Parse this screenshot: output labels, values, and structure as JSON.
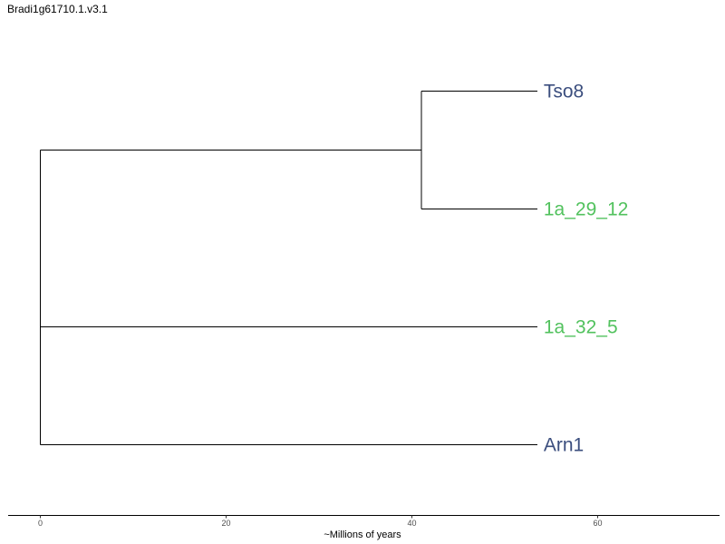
{
  "title": "Bradi1g61710.1.v3.1",
  "axis": {
    "label": "~Millions of years",
    "ticks": [
      0,
      20,
      40,
      60
    ],
    "range": [
      -3.5,
      73
    ]
  },
  "colors": {
    "group_a": "#3b4e7e",
    "group_b": "#52c25e",
    "branch": "#000000"
  },
  "tree": {
    "leaves": [
      {
        "name": "Tso8",
        "x": 53.5,
        "color": "#3b4e7e"
      },
      {
        "name": "1a_29_12",
        "x": 53.5,
        "color": "#52c25e"
      },
      {
        "name": "1a_32_5",
        "x": 53.5,
        "color": "#52c25e"
      },
      {
        "name": "Arn1",
        "x": 53.5,
        "color": "#3b4e7e"
      }
    ],
    "nodes": [
      {
        "id": "n_tso8_1a2912",
        "x": 41,
        "children": [
          0,
          1
        ]
      },
      {
        "id": "root",
        "x": 0,
        "children": [
          "n_tso8_1a2912",
          2,
          3
        ]
      }
    ]
  }
}
